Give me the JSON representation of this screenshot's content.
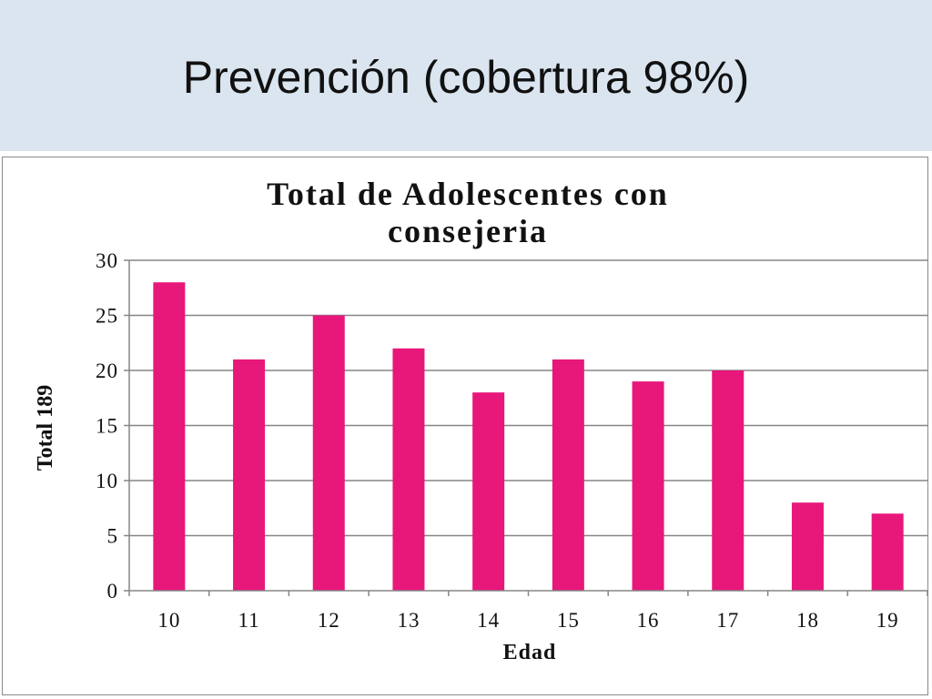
{
  "slide": {
    "title": "Prevención (cobertura 98%)"
  },
  "colors": {
    "header_background": "#dae5f0",
    "bar": "#e8177a",
    "gridline": "#868686"
  },
  "chart_data": {
    "type": "bar",
    "title_lines": [
      "Total  de Adolescentes con",
      "consejeria"
    ],
    "xlabel": "Edad",
    "ylabel": "Total 189",
    "categories": [
      "10",
      "11",
      "12",
      "13",
      "14",
      "15",
      "16",
      "17",
      "18",
      "19"
    ],
    "values": [
      28,
      21,
      25,
      22,
      18,
      21,
      19,
      20,
      8,
      7
    ],
    "ylim": [
      0,
      30
    ],
    "yticks": [
      0,
      5,
      10,
      15,
      20,
      25,
      30
    ],
    "grid": true,
    "legend": "none"
  }
}
